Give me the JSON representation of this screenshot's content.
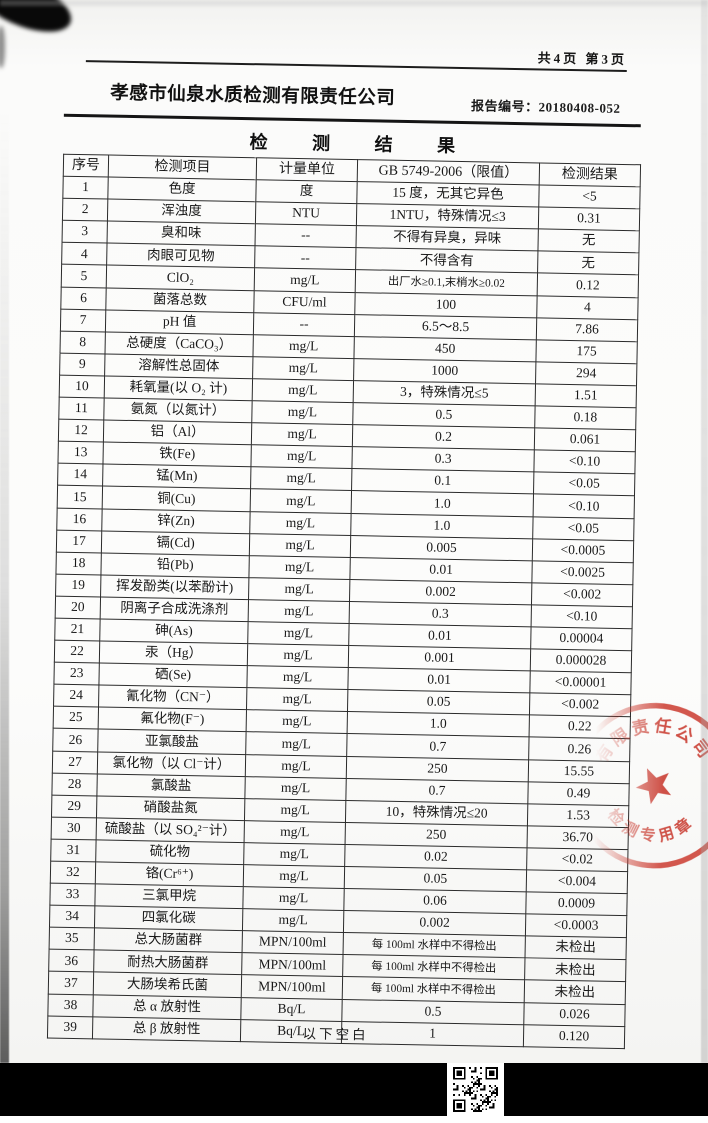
{
  "page": {
    "page_indicator": "共4页 第3页",
    "company_name": "孝感市仙泉水质检测有限责任公司",
    "report_no_label": "报告编号：",
    "report_no": "20180408-052",
    "title": "检 测 结 果",
    "footer_note": "以下空白"
  },
  "table": {
    "headers": [
      "序号",
      "检测项目",
      "计量单位",
      "GB 5749-2006（限值）",
      "检测结果"
    ],
    "rows": [
      [
        "1",
        "色度",
        "度",
        "15 度，无其它异色",
        "<5"
      ],
      [
        "2",
        "浑浊度",
        "NTU",
        "1NTU，特殊情况≤3",
        "0.31"
      ],
      [
        "3",
        "臭和味",
        "--",
        "不得有异臭，异味",
        "无"
      ],
      [
        "4",
        "肉眼可见物",
        "--",
        "不得含有",
        "无"
      ],
      [
        "5",
        "ClO₂",
        "mg/L",
        "出厂水≥0.1,末梢水≥0.02",
        "0.12"
      ],
      [
        "6",
        "菌落总数",
        "CFU/ml",
        "100",
        "4"
      ],
      [
        "7",
        "pH 值",
        "--",
        "6.5～8.5",
        "7.86"
      ],
      [
        "8",
        "总硬度（CaCO₃）",
        "mg/L",
        "450",
        "175"
      ],
      [
        "9",
        "溶解性总固体",
        "mg/L",
        "1000",
        "294"
      ],
      [
        "10",
        "耗氧量(以 O₂ 计)",
        "mg/L",
        "3，特殊情况≤5",
        "1.51"
      ],
      [
        "11",
        "氨氮（以氮计）",
        "mg/L",
        "0.5",
        "0.18"
      ],
      [
        "12",
        "铝（Al）",
        "mg/L",
        "0.2",
        "0.061"
      ],
      [
        "13",
        "铁(Fe)",
        "mg/L",
        "0.3",
        "<0.10"
      ],
      [
        "14",
        "锰(Mn)",
        "mg/L",
        "0.1",
        "<0.05"
      ],
      [
        "15",
        "铜(Cu)",
        "mg/L",
        "1.0",
        "<0.10"
      ],
      [
        "16",
        "锌(Zn)",
        "mg/L",
        "1.0",
        "<0.05"
      ],
      [
        "17",
        "镉(Cd)",
        "mg/L",
        "0.005",
        "<0.0005"
      ],
      [
        "18",
        "铅(Pb)",
        "mg/L",
        "0.01",
        "<0.0025"
      ],
      [
        "19",
        "挥发酚类(以苯酚计)",
        "mg/L",
        "0.002",
        "<0.002"
      ],
      [
        "20",
        "阴离子合成洗涤剂",
        "mg/L",
        "0.3",
        "<0.10"
      ],
      [
        "21",
        "砷(As)",
        "mg/L",
        "0.01",
        "0.00004"
      ],
      [
        "22",
        "汞（Hg）",
        "mg/L",
        "0.001",
        "0.000028"
      ],
      [
        "23",
        "硒(Se)",
        "mg/L",
        "0.01",
        "<0.00001"
      ],
      [
        "24",
        "氰化物（CN⁻）",
        "mg/L",
        "0.05",
        "<0.002"
      ],
      [
        "25",
        "氟化物(F⁻)",
        "mg/L",
        "1.0",
        "0.22"
      ],
      [
        "26",
        "亚氯酸盐",
        "mg/L",
        "0.7",
        "0.26"
      ],
      [
        "27",
        "氯化物（以 Cl⁻计）",
        "mg/L",
        "250",
        "15.55"
      ],
      [
        "28",
        "氯酸盐",
        "mg/L",
        "0.7",
        "0.49"
      ],
      [
        "29",
        "硝酸盐氮",
        "mg/L",
        "10，特殊情况≤20",
        "1.53"
      ],
      [
        "30",
        "硫酸盐（以 SO₄²⁻计）",
        "mg/L",
        "250",
        "36.70"
      ],
      [
        "31",
        "硫化物",
        "mg/L",
        "0.02",
        "<0.02"
      ],
      [
        "32",
        "铬(Cr⁶⁺)",
        "mg/L",
        "0.05",
        "<0.004"
      ],
      [
        "33",
        "三氯甲烷",
        "mg/L",
        "0.06",
        "0.0009"
      ],
      [
        "34",
        "四氯化碳",
        "mg/L",
        "0.002",
        "<0.0003"
      ],
      [
        "35",
        "总大肠菌群",
        "MPN/100ml",
        "每 100ml 水样中不得检出",
        "未检出"
      ],
      [
        "36",
        "耐热大肠菌群",
        "MPN/100ml",
        "每 100ml 水样中不得检出",
        "未检出"
      ],
      [
        "37",
        "大肠埃希氏菌",
        "MPN/100ml",
        "每 100ml 水样中不得检出",
        "未检出"
      ],
      [
        "38",
        "总 α 放射性",
        "Bq/L",
        "0.5",
        "0.026"
      ],
      [
        "39",
        "总 β 放射性",
        "Bq/L",
        "1",
        "0.120"
      ]
    ]
  },
  "stamp": {
    "arc_top_text": "有限责任公司",
    "arc_bottom_text": "检测专用章",
    "color": "#c93a2f"
  },
  "colors": {
    "paper": "#fbfbfa",
    "ink": "#1c1c1c",
    "stamp_red": "#c93a2f",
    "strip_black": "#000000"
  }
}
